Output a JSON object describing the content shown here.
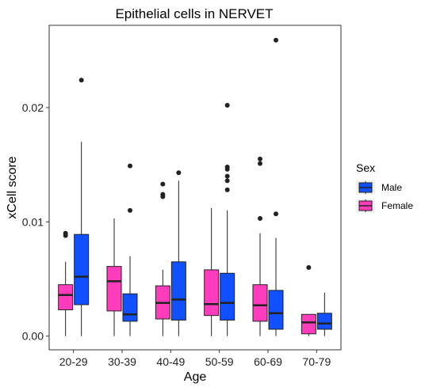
{
  "chart_data": {
    "type": "boxplot",
    "title": "Epithelial cells in NERVET",
    "xlabel": "Age",
    "ylabel": "xCell score",
    "ylim": [
      -0.0012,
      0.0272
    ],
    "yticks": [
      0.0,
      0.01,
      0.02
    ],
    "ytick_labels": [
      "0.00",
      "0.01",
      "0.02"
    ],
    "categories": [
      "20-29",
      "30-39",
      "40-49",
      "50-59",
      "60-69",
      "70-79"
    ],
    "legend": {
      "title": "Sex",
      "position": "right"
    },
    "series": [
      {
        "name": "Male",
        "color": "#1050ff",
        "boxes": [
          {
            "category": "20-29",
            "min": 0.0,
            "q1": 0.00275,
            "median": 0.0052,
            "q3": 0.0089,
            "max": 0.017,
            "outliers": [
              0.0224
            ]
          },
          {
            "category": "30-39",
            "min": 0.0,
            "q1": 0.0013,
            "median": 0.0019,
            "q3": 0.0037,
            "max": 0.007,
            "outliers": [
              0.011,
              0.0149
            ]
          },
          {
            "category": "40-49",
            "min": 0.0,
            "q1": 0.0014,
            "median": 0.0032,
            "q3": 0.0065,
            "max": 0.0136,
            "outliers": [
              0.0143
            ]
          },
          {
            "category": "50-59",
            "min": 0.0,
            "q1": 0.0014,
            "median": 0.0029,
            "q3": 0.0055,
            "max": 0.011,
            "outliers": [
              0.0128,
              0.0136,
              0.014,
              0.0146,
              0.0148,
              0.0202
            ]
          },
          {
            "category": "60-69",
            "min": 0.0,
            "q1": 0.0006,
            "median": 0.002,
            "q3": 0.004,
            "max": 0.0086,
            "outliers": [
              0.0107,
              0.0259
            ]
          },
          {
            "category": "70-79",
            "min": 0.0,
            "q1": 0.0006,
            "median": 0.0011,
            "q3": 0.002,
            "max": 0.0038,
            "outliers": []
          }
        ]
      },
      {
        "name": "Female",
        "color": "#ff3cbc",
        "boxes": [
          {
            "category": "20-29",
            "min": 0.0,
            "q1": 0.0023,
            "median": 0.0036,
            "q3": 0.0045,
            "max": 0.0065,
            "outliers": [
              0.0088,
              0.009
            ]
          },
          {
            "category": "30-39",
            "min": 0.0,
            "q1": 0.0022,
            "median": 0.0048,
            "q3": 0.0061,
            "max": 0.0103,
            "outliers": []
          },
          {
            "category": "40-49",
            "min": 0.0,
            "q1": 0.0015,
            "median": 0.0029,
            "q3": 0.0044,
            "max": 0.0058,
            "outliers": [
              0.0122,
              0.0124,
              0.0133
            ]
          },
          {
            "category": "50-59",
            "min": 0.0,
            "q1": 0.0018,
            "median": 0.0028,
            "q3": 0.0058,
            "max": 0.0112,
            "outliers": []
          },
          {
            "category": "60-69",
            "min": 0.0,
            "q1": 0.0013,
            "median": 0.0027,
            "q3": 0.0045,
            "max": 0.009,
            "outliers": [
              0.0103,
              0.0151,
              0.0155
            ]
          },
          {
            "category": "70-79",
            "min": 0.0,
            "q1": 0.0002,
            "median": 0.0012,
            "q3": 0.0019,
            "max": 0.0019,
            "outliers": [
              0.006
            ]
          }
        ]
      }
    ],
    "grid": false
  }
}
